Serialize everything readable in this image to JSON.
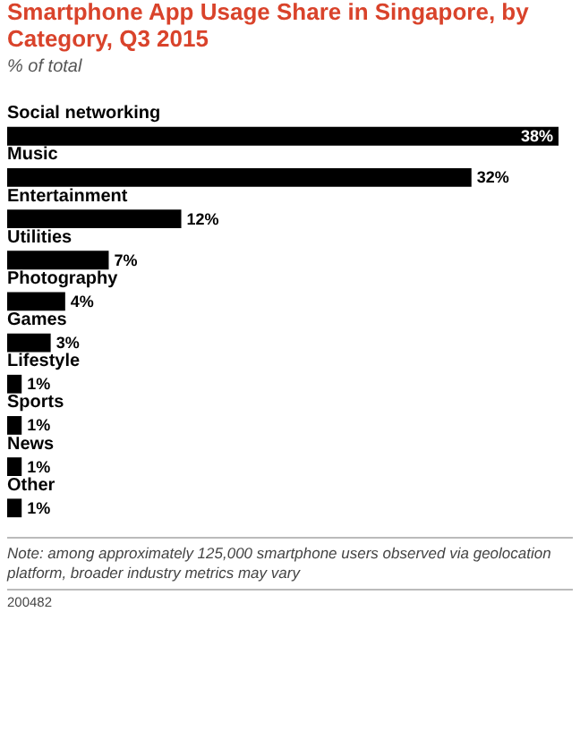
{
  "chart_data": {
    "type": "bar",
    "orientation": "horizontal",
    "title": "Smartphone App Usage Share in Singapore, by Category, Q3 2015",
    "subtitle": "% of total",
    "categories": [
      "Social networking",
      "Music",
      "Entertainment",
      "Utilities",
      "Photography",
      "Games",
      "Lifestyle",
      "Sports",
      "News",
      "Other"
    ],
    "values": [
      38,
      32,
      12,
      7,
      4,
      3,
      1,
      1,
      1,
      1
    ],
    "value_labels": [
      "38%",
      "32%",
      "12%",
      "7%",
      "4%",
      "3%",
      "1%",
      "1%",
      "1%",
      "1%"
    ],
    "color": "#000000",
    "xlim": [
      0,
      38
    ],
    "annotations": [
      "Note: among approximately 125,000 smartphone users observed via geolocation platform, broader industry metrics may vary",
      "200482"
    ]
  }
}
